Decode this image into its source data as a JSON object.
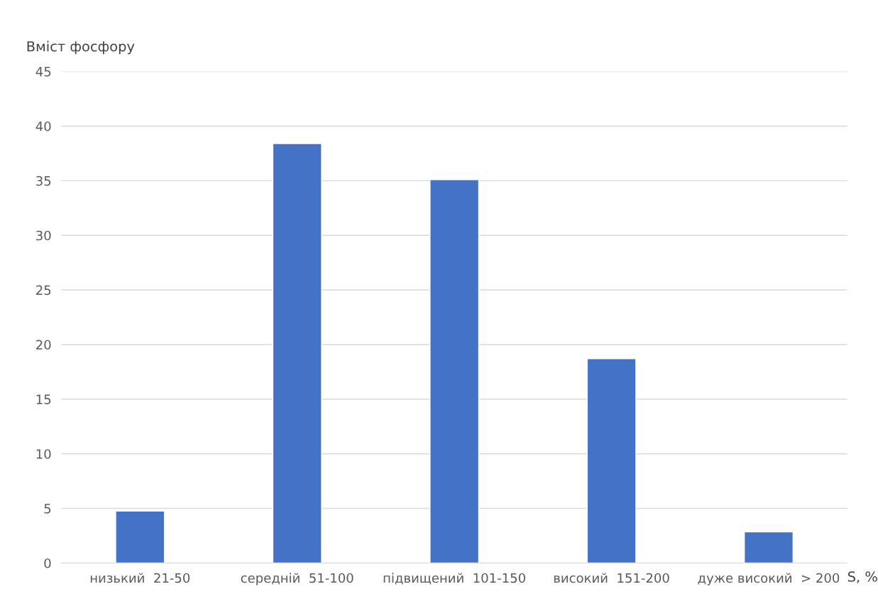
{
  "chart_data": {
    "type": "bar",
    "categories": [
      "низький  21-50",
      "середній  51-100",
      "підвищений  101-150",
      "високий  151-200",
      "дуже високий  > 200"
    ],
    "values": [
      4.75,
      38.4,
      35.1,
      18.7,
      2.85
    ],
    "color": "#4472c4",
    "ylabel": "Вміст фосфору",
    "xlabel": "S, %",
    "ylim": [
      0,
      45
    ],
    "yticks": [
      0,
      5,
      10,
      15,
      20,
      25,
      30,
      35,
      40,
      45
    ],
    "grid": "y",
    "legend": false
  }
}
